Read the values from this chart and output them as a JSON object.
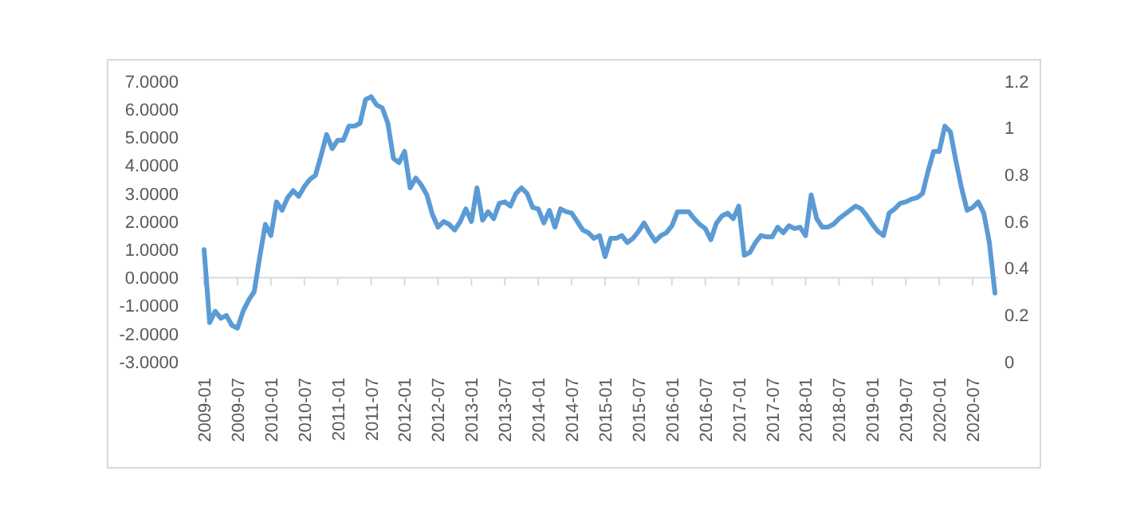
{
  "chart_data": {
    "type": "line",
    "categories": [
      "2009-01",
      null,
      null,
      null,
      null,
      null,
      "2009-07",
      null,
      null,
      null,
      null,
      null,
      "2010-01",
      null,
      null,
      null,
      null,
      null,
      "2010-07",
      null,
      null,
      null,
      null,
      null,
      "2011-01",
      null,
      null,
      null,
      null,
      null,
      "2011-07",
      null,
      null,
      null,
      null,
      null,
      "2012-01",
      null,
      null,
      null,
      null,
      null,
      "2012-07",
      null,
      null,
      null,
      null,
      null,
      "2013-01",
      null,
      null,
      null,
      null,
      null,
      "2013-07",
      null,
      null,
      null,
      null,
      null,
      "2014-01",
      null,
      null,
      null,
      null,
      null,
      "2014-07",
      null,
      null,
      null,
      null,
      null,
      "2015-01",
      null,
      null,
      null,
      null,
      null,
      "2015-07",
      null,
      null,
      null,
      null,
      null,
      "2016-01",
      null,
      null,
      null,
      null,
      null,
      "2016-07",
      null,
      null,
      null,
      null,
      null,
      "2017-01",
      null,
      null,
      null,
      null,
      null,
      "2017-07",
      null,
      null,
      null,
      null,
      null,
      "2018-01",
      null,
      null,
      null,
      null,
      null,
      "2018-07",
      null,
      null,
      null,
      null,
      null,
      "2019-01",
      null,
      null,
      null,
      null,
      null,
      "2019-07",
      null,
      null,
      null,
      null,
      null,
      "2020-01",
      null,
      null,
      null,
      null,
      null,
      "2020-07",
      null,
      null,
      null,
      null
    ],
    "series": [
      {
        "color": "#5b9bd5",
        "values": [
          1.0,
          -1.6,
          -1.2,
          -1.45,
          -1.35,
          -1.7,
          -1.8,
          -1.2,
          -0.8,
          -0.5,
          0.75,
          1.9,
          1.5,
          2.7,
          2.4,
          2.85,
          3.1,
          2.9,
          3.25,
          3.5,
          3.65,
          4.35,
          5.1,
          4.6,
          4.9,
          4.9,
          5.4,
          5.4,
          5.5,
          6.35,
          6.45,
          6.15,
          6.05,
          5.5,
          4.25,
          4.1,
          4.5,
          3.2,
          3.55,
          3.3,
          2.95,
          2.25,
          1.8,
          2.0,
          1.9,
          1.7,
          2.0,
          2.45,
          2.0,
          3.2,
          2.05,
          2.35,
          2.1,
          2.65,
          2.7,
          2.55,
          3.0,
          3.2,
          3.0,
          2.5,
          2.45,
          1.95,
          2.4,
          1.8,
          2.45,
          2.35,
          2.3,
          2.0,
          1.7,
          1.6,
          1.4,
          1.5,
          0.75,
          1.4,
          1.4,
          1.5,
          1.25,
          1.4,
          1.65,
          1.95,
          1.6,
          1.3,
          1.5,
          1.6,
          1.85,
          2.35,
          2.35,
          2.35,
          2.1,
          1.9,
          1.75,
          1.35,
          1.95,
          2.2,
          2.3,
          2.1,
          2.55,
          0.8,
          0.9,
          1.25,
          1.5,
          1.45,
          1.45,
          1.8,
          1.6,
          1.85,
          1.75,
          1.8,
          1.5,
          2.95,
          2.1,
          1.8,
          1.8,
          1.9,
          2.1,
          2.25,
          2.4,
          2.55,
          2.45,
          2.2,
          1.9,
          1.65,
          1.5,
          2.3,
          2.45,
          2.65,
          2.7,
          2.8,
          2.85,
          3.0,
          3.8,
          4.5,
          4.5,
          5.4,
          5.2,
          4.15,
          3.2,
          2.4,
          2.5,
          2.7,
          2.3,
          1.25,
          -0.55
        ]
      }
    ],
    "ylim": [
      -3,
      7
    ],
    "yticks": [
      {
        "value": -3,
        "label": "-3.0000"
      },
      {
        "value": -2,
        "label": "-2.0000"
      },
      {
        "value": -1,
        "label": "-1.0000"
      },
      {
        "value": 0,
        "label": "0.0000"
      },
      {
        "value": 1,
        "label": "1.0000"
      },
      {
        "value": 2,
        "label": "2.0000"
      },
      {
        "value": 3,
        "label": "3.0000"
      },
      {
        "value": 4,
        "label": "4.0000"
      },
      {
        "value": 5,
        "label": "5.0000"
      },
      {
        "value": 6,
        "label": "6.0000"
      },
      {
        "value": 7,
        "label": "7.0000"
      }
    ],
    "y2lim": [
      0,
      1.2
    ],
    "y2ticks": [
      0,
      0.2,
      0.4,
      0.6,
      0.8,
      1,
      1.2
    ]
  }
}
